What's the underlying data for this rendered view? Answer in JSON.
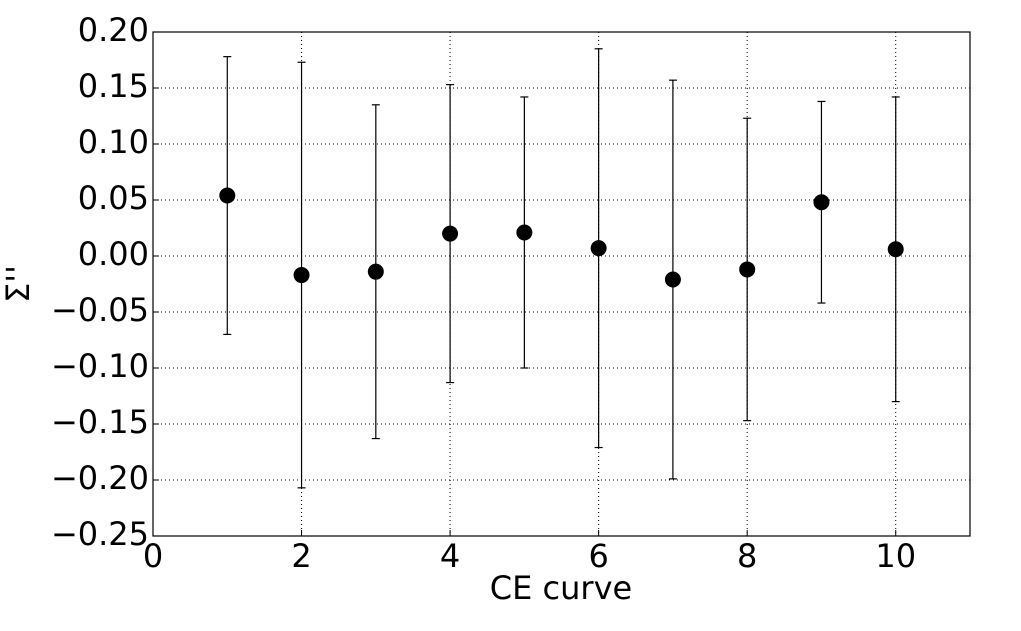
{
  "chart_data": {
    "type": "errorbar",
    "x_label": "CE curve",
    "y_label": "Σ''",
    "x": [
      1,
      2,
      3,
      4,
      5,
      6,
      7,
      8,
      9,
      10
    ],
    "values": [
      0.054,
      -0.017,
      -0.014,
      0.02,
      0.021,
      0.007,
      -0.021,
      -0.012,
      0.048,
      0.006
    ],
    "errors": [
      0.124,
      0.19,
      0.149,
      0.133,
      0.121,
      0.178,
      0.178,
      0.135,
      0.09,
      0.136
    ],
    "color": "#000000",
    "xlim": [
      0,
      11
    ],
    "xticks": [
      0,
      2,
      4,
      6,
      8,
      10
    ],
    "ylim": [
      -0.25,
      0.2
    ],
    "yticks": [
      {
        "value": -0.25,
        "label": "−0.25"
      },
      {
        "value": -0.2,
        "label": "−0.20"
      },
      {
        "value": -0.15,
        "label": "−0.15"
      },
      {
        "value": -0.1,
        "label": "−0.10"
      },
      {
        "value": -0.05,
        "label": "−0.05"
      },
      {
        "value": 0,
        "label": "0.00"
      },
      {
        "value": 0.05,
        "label": "0.05"
      },
      {
        "value": 0.1,
        "label": "0.10"
      },
      {
        "value": 0.15,
        "label": "0.15"
      },
      {
        "value": 0.2,
        "label": "0.20"
      }
    ],
    "grid": true
  }
}
